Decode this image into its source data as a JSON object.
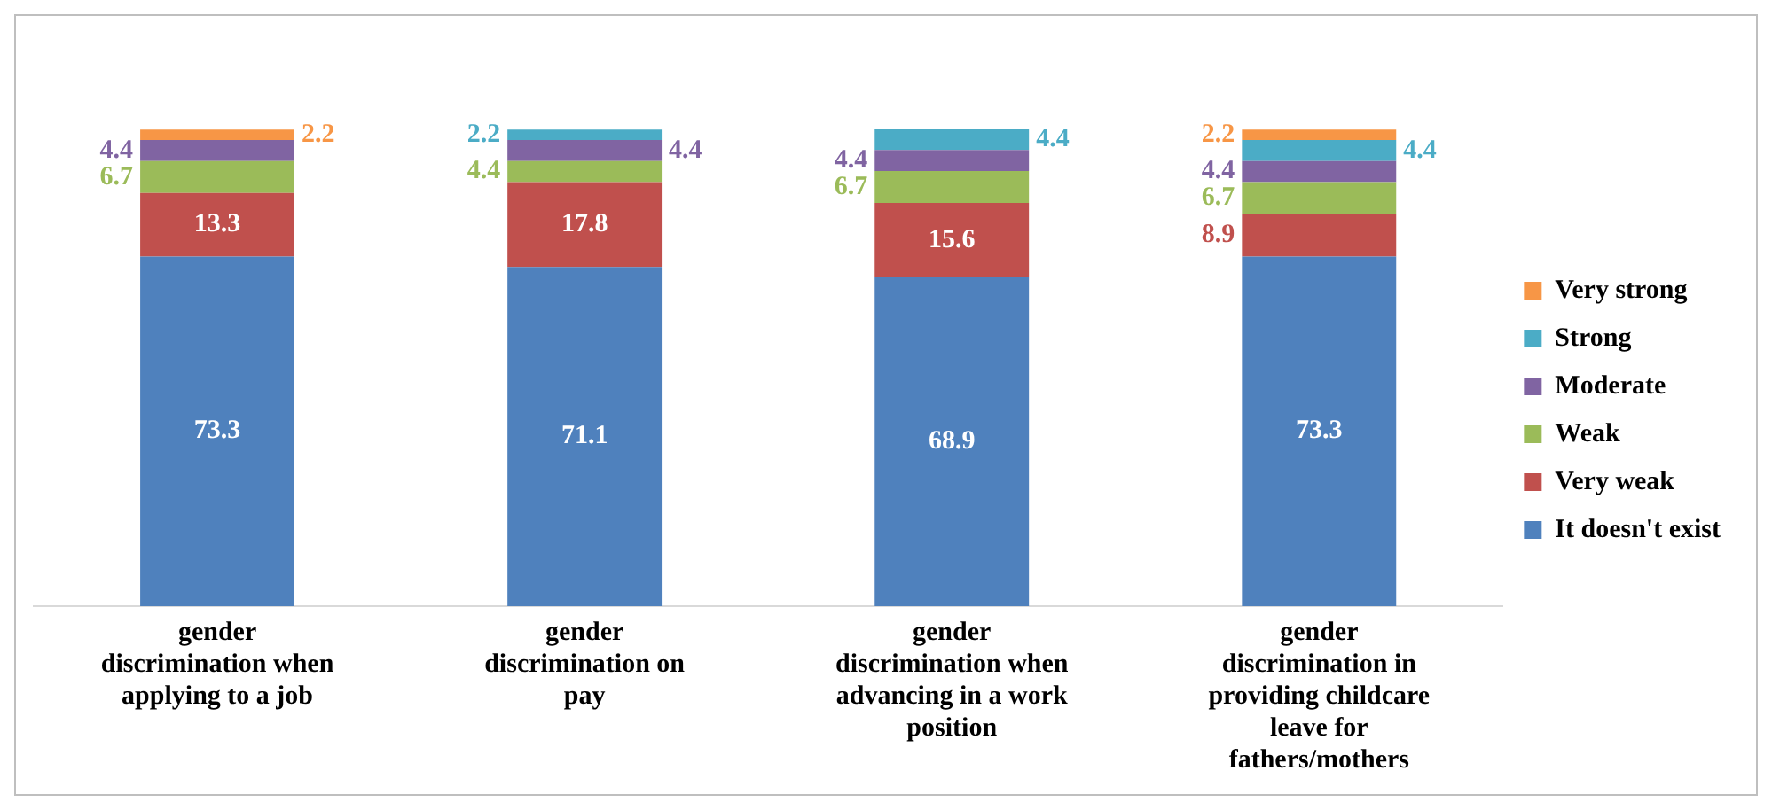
{
  "chart_data": {
    "type": "bar",
    "stacked": true,
    "data_labels": true,
    "legend": "right",
    "grid": false,
    "tick_labels": "x",
    "categories": [
      "gender discrimination when applying to a job",
      "gender discrimination on pay",
      "gender discrimination when advancing in a work position",
      "gender discrimination in providing childcare leave for fathers/mothers"
    ],
    "series": [
      {
        "name": "It doesn't exist",
        "color": "#4f81bd",
        "values": [
          73.3,
          71.1,
          68.9,
          73.3
        ]
      },
      {
        "name": "Very weak",
        "color": "#c0504d",
        "values": [
          13.3,
          17.8,
          15.6,
          8.9
        ]
      },
      {
        "name": "Weak",
        "color": "#9bbb59",
        "values": [
          6.7,
          4.4,
          6.7,
          6.7
        ]
      },
      {
        "name": "Moderate",
        "color": "#8064a2",
        "values": [
          4.4,
          4.4,
          4.4,
          4.4
        ]
      },
      {
        "name": "Strong",
        "color": "#4bacc6",
        "values": [
          null,
          2.2,
          4.4,
          4.4
        ]
      },
      {
        "name": "Very strong",
        "color": "#f79646",
        "values": [
          2.2,
          null,
          null,
          2.2
        ]
      }
    ]
  }
}
